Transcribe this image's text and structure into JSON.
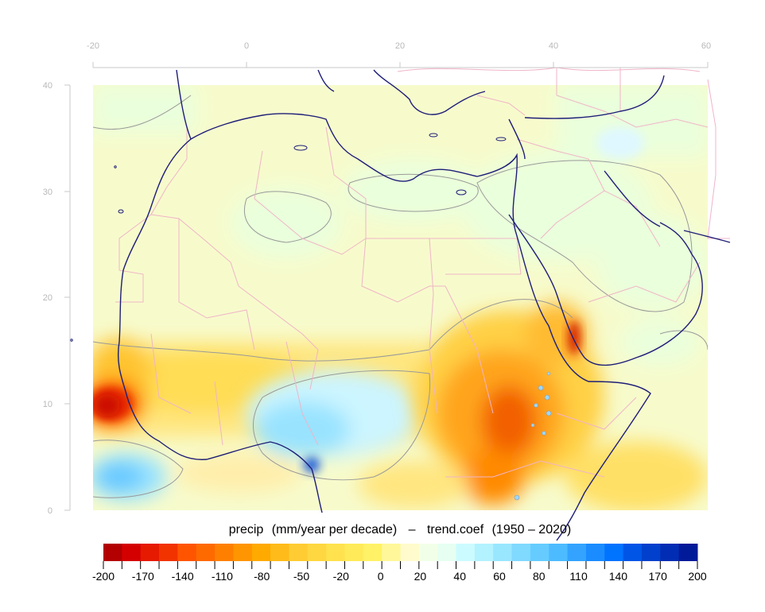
{
  "title": {
    "variable": "precip",
    "units": "(mm/year per decade)",
    "dash": "–",
    "statistic": "trend.coef",
    "period": "(1950 – 2020)"
  },
  "axes": {
    "lon_ticks": [
      "-20",
      "0",
      "20",
      "40",
      "60"
    ],
    "lat_ticks": [
      "40",
      "30",
      "20",
      "10",
      "0"
    ],
    "lon_range": [
      -20,
      60
    ],
    "lat_range": [
      0,
      40
    ]
  },
  "colorbar": {
    "min": -200,
    "max": 200,
    "labels": [
      "-200",
      "-170",
      "-140",
      "-110",
      "-80",
      "-50",
      "-20",
      "0",
      "20",
      "40",
      "60",
      "80",
      "110",
      "140",
      "170",
      "200"
    ],
    "colors": [
      "#b30000",
      "#d40000",
      "#e61a00",
      "#f23300",
      "#ff5500",
      "#ff6a00",
      "#ff8000",
      "#ff9500",
      "#ffaa00",
      "#ffbb1a",
      "#ffcc33",
      "#ffd740",
      "#ffe24d",
      "#ffeb59",
      "#fff266",
      "#fff799",
      "#fffbcc",
      "#f2ffe8",
      "#e6fff2",
      "#ccfbff",
      "#b3f2ff",
      "#99e6ff",
      "#80d9ff",
      "#66ccff",
      "#4dbbff",
      "#33a3ff",
      "#1a8cff",
      "#0073ff",
      "#0055e6",
      "#0040cc",
      "#002db3",
      "#001a99"
    ]
  },
  "colors": {
    "coastline": "#1e1e78",
    "borders": "#f0b4c8",
    "contour": "#999999",
    "land_base": "#f7fbcc"
  }
}
